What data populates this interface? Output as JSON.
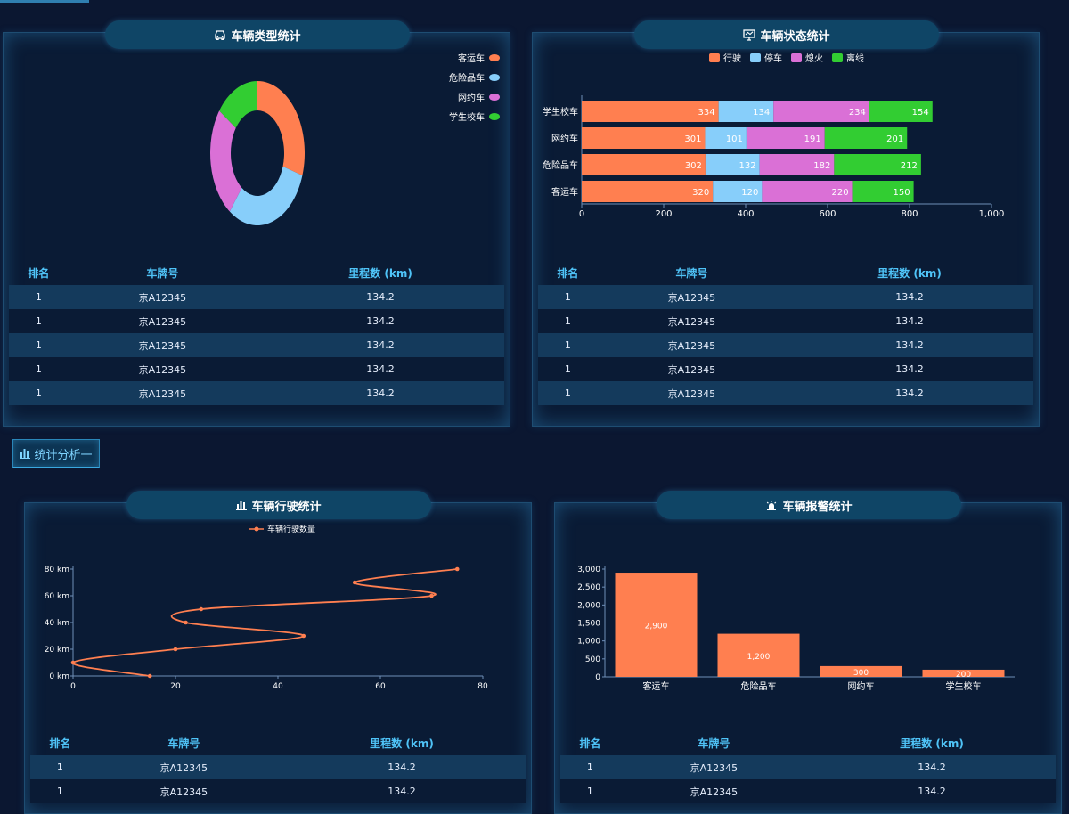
{
  "panels": {
    "type_stats": {
      "title": "车辆类型统计",
      "legend": [
        {
          "label": "客运车",
          "color": "#ff7f50"
        },
        {
          "label": "危险品车",
          "color": "#87cefa"
        },
        {
          "label": "网约车",
          "color": "#da70d6"
        },
        {
          "label": "学生校车",
          "color": "#32cd32"
        }
      ]
    },
    "status_stats": {
      "title": "车辆状态统计",
      "legend": [
        {
          "label": "行驶",
          "color": "#ff7f50"
        },
        {
          "label": "停车",
          "color": "#87cefa"
        },
        {
          "label": "熄火",
          "color": "#da70d6"
        },
        {
          "label": "离线",
          "color": "#32cd32"
        }
      ]
    },
    "driving_stats": {
      "title": "车辆行驶统计",
      "legend_label": "车辆行驶数量"
    },
    "alarm_stats": {
      "title": "车辆报警统计"
    }
  },
  "section_button": "统计分析一",
  "table_headers": {
    "rank": "排名",
    "plate": "车牌号",
    "mileage": "里程数",
    "unit": "(km)"
  },
  "tables": {
    "t1": [
      {
        "rank": "1",
        "plate": "京A12345",
        "mileage": "134.2"
      },
      {
        "rank": "1",
        "plate": "京A12345",
        "mileage": "134.2"
      },
      {
        "rank": "1",
        "plate": "京A12345",
        "mileage": "134.2"
      },
      {
        "rank": "1",
        "plate": "京A12345",
        "mileage": "134.2"
      },
      {
        "rank": "1",
        "plate": "京A12345",
        "mileage": "134.2"
      }
    ],
    "t2": [
      {
        "rank": "1",
        "plate": "京A12345",
        "mileage": "134.2"
      },
      {
        "rank": "1",
        "plate": "京A12345",
        "mileage": "134.2"
      },
      {
        "rank": "1",
        "plate": "京A12345",
        "mileage": "134.2"
      },
      {
        "rank": "1",
        "plate": "京A12345",
        "mileage": "134.2"
      },
      {
        "rank": "1",
        "plate": "京A12345",
        "mileage": "134.2"
      }
    ],
    "t3": [
      {
        "rank": "1",
        "plate": "京A12345",
        "mileage": "134.2"
      },
      {
        "rank": "1",
        "plate": "京A12345",
        "mileage": "134.2"
      }
    ],
    "t4": [
      {
        "rank": "1",
        "plate": "京A12345",
        "mileage": "134.2"
      },
      {
        "rank": "1",
        "plate": "京A12345",
        "mileage": "134.2"
      }
    ]
  },
  "chart_data": [
    {
      "type": "pie",
      "donut": true,
      "labels": [
        "客运车",
        "危险品车",
        "网约车",
        "学生校车"
      ],
      "values": [
        30,
        30,
        25,
        15
      ],
      "colors": [
        "#ff7f50",
        "#87cefa",
        "#da70d6",
        "#32cd32"
      ],
      "legend_position": "top-right"
    },
    {
      "type": "bar",
      "orientation": "horizontal",
      "stacked": true,
      "categories": [
        "学生校车",
        "网约车",
        "危险品车",
        "客运车"
      ],
      "series": [
        {
          "name": "行驶",
          "color": "#ff7f50",
          "values": [
            334,
            301,
            302,
            320
          ]
        },
        {
          "name": "停车",
          "color": "#87cefa",
          "values": [
            134,
            101,
            132,
            120
          ]
        },
        {
          "name": "熄火",
          "color": "#da70d6",
          "values": [
            234,
            191,
            182,
            220
          ]
        },
        {
          "name": "离线",
          "color": "#32cd32",
          "values": [
            154,
            201,
            212,
            150
          ]
        }
      ],
      "xlim": [
        0,
        1000
      ],
      "xticks": [
        0,
        200,
        400,
        600,
        800,
        1000
      ],
      "xtick_labels": [
        "0",
        "200",
        "400",
        "600",
        "800",
        "1,000"
      ],
      "legend_position": "top-center"
    },
    {
      "type": "line",
      "smooth": true,
      "series": [
        {
          "name": "车辆行驶数量",
          "color": "#ff7f50",
          "points": [
            [
              15,
              0
            ],
            [
              0,
              10
            ],
            [
              20,
              20
            ],
            [
              45,
              30
            ],
            [
              22,
              40
            ],
            [
              25,
              50
            ],
            [
              70,
              60
            ],
            [
              55,
              70
            ],
            [
              75,
              80
            ]
          ]
        }
      ],
      "xlim": [
        0,
        80
      ],
      "ylim": [
        0,
        80
      ],
      "xticks": [
        0,
        20,
        40,
        60,
        80
      ],
      "yticks": [
        0,
        20,
        40,
        60,
        80
      ],
      "ytick_labels": [
        "0 km",
        "20 km",
        "40 km",
        "60 km",
        "80 km"
      ],
      "legend_position": "top-center"
    },
    {
      "type": "bar",
      "categories": [
        "客运车",
        "危险品车",
        "网约车",
        "学生校车"
      ],
      "values": [
        2900,
        1200,
        300,
        200
      ],
      "value_labels": [
        "2,900",
        "1,200",
        "300",
        "200"
      ],
      "color": "#ff7f50",
      "ylim": [
        0,
        3000
      ],
      "yticks": [
        0,
        500,
        1000,
        1500,
        2000,
        2500,
        3000
      ],
      "ytick_labels": [
        "0",
        "500",
        "1,000",
        "1,500",
        "2,000",
        "2,500",
        "3,000"
      ]
    }
  ]
}
